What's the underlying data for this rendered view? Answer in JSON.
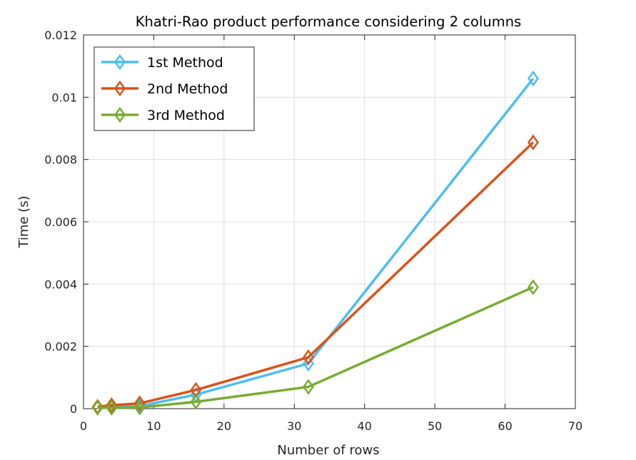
{
  "chart_data": {
    "type": "line",
    "title": "Khatri-Rao product performance considering 2 columns",
    "xlabel": "Number of rows",
    "ylabel": "Time (s)",
    "xlim": [
      0,
      70
    ],
    "ylim": [
      0,
      0.012
    ],
    "xticks": [
      0,
      10,
      20,
      30,
      40,
      50,
      60,
      70
    ],
    "xtick_labels": [
      "0",
      "10",
      "20",
      "30",
      "40",
      "50",
      "60",
      "70"
    ],
    "yticks": [
      0,
      0.002,
      0.004,
      0.006,
      0.008,
      0.01,
      0.012
    ],
    "ytick_labels": [
      "0",
      "0.002",
      "0.004",
      "0.006",
      "0.008",
      "0.01",
      "0.012"
    ],
    "grid": true,
    "legend_position": "top-left",
    "marker": "diamond",
    "x": [
      2,
      4,
      8,
      16,
      32,
      64
    ],
    "series": [
      {
        "name": "1st Method",
        "color": "#4DBEEE",
        "values": [
          4e-05,
          5e-05,
          8e-05,
          0.00045,
          0.00145,
          0.0106
        ]
      },
      {
        "name": "2nd Method",
        "color": "#D95319",
        "values": [
          6e-05,
          0.00011,
          0.00017,
          0.0006,
          0.00165,
          0.00855
        ]
      },
      {
        "name": "3rd Method",
        "color": "#77AC30",
        "values": [
          3e-05,
          3e-05,
          4e-05,
          0.00022,
          0.0007,
          0.0039
        ]
      }
    ]
  }
}
